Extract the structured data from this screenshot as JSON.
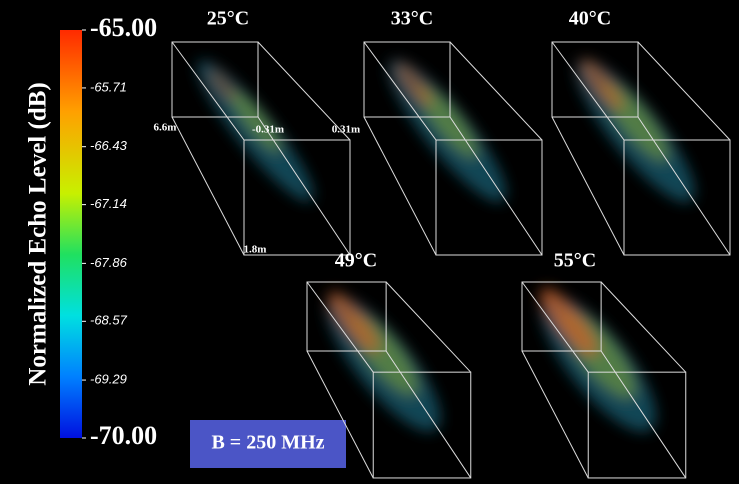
{
  "colorbar": {
    "label": "Normalized Echo Level (dB)",
    "lim": [
      -70,
      -65
    ],
    "ticks": [
      {
        "value": -65,
        "label": "-65.00"
      },
      {
        "value": -65.71,
        "label": "-65.71"
      },
      {
        "value": -66.43,
        "label": "-66.43"
      },
      {
        "value": -67.14,
        "label": "-67.14"
      },
      {
        "value": -67.86,
        "label": "-67.86"
      },
      {
        "value": -68.57,
        "label": "-68.57"
      },
      {
        "value": -69.29,
        "label": "-69.29"
      },
      {
        "value": -70,
        "label": "-70.00"
      }
    ]
  },
  "panels": [
    {
      "title": "25°C"
    },
    {
      "title": "33°C"
    },
    {
      "title": "40°C"
    },
    {
      "title": "49°C"
    },
    {
      "title": "55°C"
    }
  ],
  "axis_labels": {
    "depth": "6.6m",
    "left": "-0.31m",
    "right": "0.31m",
    "range": "1.8m"
  },
  "annotation": "B = 250 MHz"
}
